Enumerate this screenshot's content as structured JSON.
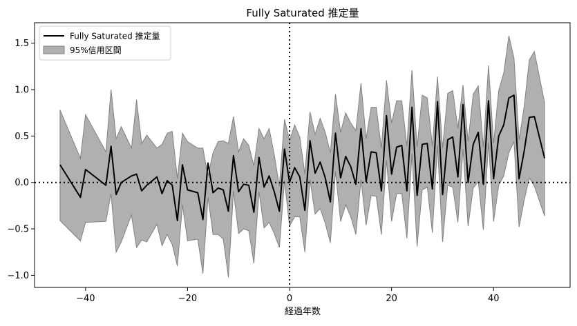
{
  "chart_data": {
    "type": "line",
    "title": "Fully Saturated 推定量",
    "xlabel": "経過年数",
    "ylabel": "",
    "xlim": [
      -50,
      55
    ],
    "ylim": [
      -1.13,
      1.72
    ],
    "xticks": [
      -40,
      -20,
      0,
      20,
      40
    ],
    "xtick_labels": [
      "−40",
      "−20",
      "0",
      "20",
      "40"
    ],
    "yticks": [
      -1.0,
      -0.5,
      0.0,
      0.5,
      1.0,
      1.5
    ],
    "ytick_labels": [
      "−1.0",
      "−0.5",
      "0.0",
      "0.5",
      "1.0",
      "1.5"
    ],
    "reference_lines": [
      {
        "orientation": "horizontal",
        "value": 0,
        "style": "dotted"
      },
      {
        "orientation": "vertical",
        "value": 0,
        "style": "dotted"
      }
    ],
    "legend": {
      "placement": "top-left"
    },
    "series": [
      {
        "name": "Fully Saturated 推定量",
        "kind": "line",
        "color": "#000000",
        "points": [
          [
            -45,
            0.19
          ],
          [
            -41,
            -0.16
          ],
          [
            -40,
            0.14
          ],
          [
            -36,
            -0.03
          ],
          [
            -35,
            0.39
          ],
          [
            -34,
            -0.13
          ],
          [
            -33,
            0.0
          ],
          [
            -31,
            0.07
          ],
          [
            -30,
            0.09
          ],
          [
            -29,
            -0.09
          ],
          [
            -28,
            -0.03
          ],
          [
            -26,
            0.06
          ],
          [
            -25,
            -0.12
          ],
          [
            -24,
            0.02
          ],
          [
            -23,
            -0.03
          ],
          [
            -22,
            -0.41
          ],
          [
            -21,
            0.19
          ],
          [
            -20,
            -0.08
          ],
          [
            -18,
            -0.11
          ],
          [
            -17,
            -0.4
          ],
          [
            -16,
            0.21
          ],
          [
            -15,
            -0.11
          ],
          [
            -14,
            -0.06
          ],
          [
            -13,
            -0.08
          ],
          [
            -12,
            -0.31
          ],
          [
            -11,
            0.29
          ],
          [
            -10,
            -0.1
          ],
          [
            -9,
            -0.02
          ],
          [
            -8,
            -0.03
          ],
          [
            -7,
            -0.32
          ],
          [
            -6,
            0.27
          ],
          [
            -5,
            -0.05
          ],
          [
            -4,
            0.07
          ],
          [
            -3,
            -0.1
          ],
          [
            -2,
            -0.31
          ],
          [
            -1,
            0.36
          ],
          [
            0,
            0.0
          ],
          [
            1,
            0.16
          ],
          [
            2,
            0.06
          ],
          [
            3,
            -0.3
          ],
          [
            4,
            0.45
          ],
          [
            5,
            0.1
          ],
          [
            6,
            0.22
          ],
          [
            7,
            0.05
          ],
          [
            8,
            -0.21
          ],
          [
            9,
            0.53
          ],
          [
            10,
            0.05
          ],
          [
            11,
            0.28
          ],
          [
            12,
            0.17
          ],
          [
            13,
            -0.02
          ],
          [
            14,
            0.58
          ],
          [
            15,
            0.01
          ],
          [
            16,
            0.33
          ],
          [
            17,
            0.32
          ],
          [
            18,
            -0.09
          ],
          [
            19,
            0.72
          ],
          [
            20,
            0.09
          ],
          [
            21,
            0.38
          ],
          [
            22,
            0.4
          ],
          [
            23,
            -0.09
          ],
          [
            24,
            0.81
          ],
          [
            25,
            -0.14
          ],
          [
            26,
            0.41
          ],
          [
            27,
            0.42
          ],
          [
            28,
            -0.07
          ],
          [
            29,
            0.87
          ],
          [
            30,
            -0.13
          ],
          [
            31,
            0.46
          ],
          [
            32,
            0.49
          ],
          [
            33,
            0.06
          ],
          [
            34,
            0.84
          ],
          [
            35,
            0.0
          ],
          [
            36,
            0.41
          ],
          [
            37,
            0.54
          ],
          [
            38,
            -0.02
          ],
          [
            39,
            0.88
          ],
          [
            40,
            0.04
          ],
          [
            41,
            0.5
          ],
          [
            42,
            0.62
          ],
          [
            43,
            0.91
          ],
          [
            44,
            0.94
          ],
          [
            45,
            0.04
          ],
          [
            46,
            0.34
          ],
          [
            47,
            0.7
          ],
          [
            48,
            0.71
          ],
          [
            50,
            0.26
          ]
        ]
      },
      {
        "name": "95%信用区間",
        "kind": "band",
        "color": "#b0b0b0",
        "edge_color": "#808080",
        "upper": [
          [
            -45,
            0.78
          ],
          [
            -41,
            0.26
          ],
          [
            -40,
            0.73
          ],
          [
            -36,
            0.33
          ],
          [
            -35,
            1.0
          ],
          [
            -34,
            0.47
          ],
          [
            -33,
            0.6
          ],
          [
            -31,
            0.37
          ],
          [
            -30,
            0.89
          ],
          [
            -29,
            0.42
          ],
          [
            -28,
            0.51
          ],
          [
            -26,
            0.37
          ],
          [
            -25,
            0.41
          ],
          [
            -24,
            0.53
          ],
          [
            -23,
            0.55
          ],
          [
            -22,
            0.04
          ],
          [
            -21,
            0.53
          ],
          [
            -20,
            0.44
          ],
          [
            -18,
            0.37
          ],
          [
            -17,
            0.37
          ],
          [
            -16,
            0.07
          ],
          [
            -15,
            0.32
          ],
          [
            -14,
            0.44
          ],
          [
            -13,
            0.45
          ],
          [
            -12,
            0.42
          ],
          [
            -11,
            0.71
          ],
          [
            -10,
            0.33
          ],
          [
            -9,
            0.47
          ],
          [
            -8,
            0.4
          ],
          [
            -7,
            0.18
          ],
          [
            -6,
            0.58
          ],
          [
            -5,
            0.47
          ],
          [
            -4,
            0.58
          ],
          [
            -3,
            0.3
          ],
          [
            -2,
            -0.04
          ],
          [
            -1,
            0.68
          ],
          [
            0,
            0.45
          ],
          [
            1,
            0.62
          ],
          [
            2,
            0.49
          ],
          [
            3,
            0.09
          ],
          [
            4,
            0.76
          ],
          [
            5,
            0.52
          ],
          [
            6,
            0.69
          ],
          [
            7,
            0.54
          ],
          [
            8,
            0.32
          ],
          [
            9,
            0.95
          ],
          [
            10,
            0.54
          ],
          [
            11,
            0.75
          ],
          [
            12,
            0.64
          ],
          [
            13,
            0.56
          ],
          [
            14,
            1.07
          ],
          [
            15,
            0.47
          ],
          [
            16,
            0.81
          ],
          [
            17,
            0.81
          ],
          [
            18,
            0.37
          ],
          [
            19,
            1.1
          ],
          [
            20,
            0.64
          ],
          [
            21,
            0.88
          ],
          [
            22,
            0.88
          ],
          [
            23,
            0.39
          ],
          [
            24,
            1.21
          ],
          [
            25,
            0.38
          ],
          [
            26,
            0.94
          ],
          [
            27,
            0.91
          ],
          [
            28,
            0.39
          ],
          [
            29,
            1.14
          ],
          [
            30,
            0.37
          ],
          [
            31,
            0.96
          ],
          [
            32,
            0.99
          ],
          [
            33,
            0.58
          ],
          [
            34,
            1.05
          ],
          [
            35,
            0.44
          ],
          [
            36,
            0.95
          ],
          [
            37,
            1.04
          ],
          [
            38,
            0.38
          ],
          [
            39,
            1.26
          ],
          [
            40,
            0.42
          ],
          [
            41,
            0.99
          ],
          [
            42,
            1.18
          ],
          [
            43,
            1.58
          ],
          [
            44,
            1.34
          ],
          [
            45,
            0.46
          ],
          [
            46,
            0.82
          ],
          [
            47,
            1.32
          ],
          [
            48,
            1.41
          ],
          [
            50,
            0.86
          ]
        ],
        "lower": [
          [
            -45,
            -0.41
          ],
          [
            -41,
            -0.63
          ],
          [
            -40,
            -0.43
          ],
          [
            -36,
            -0.42
          ],
          [
            -35,
            -0.12
          ],
          [
            -34,
            -0.75
          ],
          [
            -33,
            -0.64
          ],
          [
            -31,
            -0.35
          ],
          [
            -30,
            -0.7
          ],
          [
            -29,
            -0.62
          ],
          [
            -28,
            -0.64
          ],
          [
            -26,
            -0.45
          ],
          [
            -25,
            -0.68
          ],
          [
            -24,
            -0.56
          ],
          [
            -23,
            -0.67
          ],
          [
            -22,
            -0.9
          ],
          [
            -21,
            -0.24
          ],
          [
            -20,
            -0.63
          ],
          [
            -18,
            -0.61
          ],
          [
            -17,
            -0.98
          ],
          [
            -16,
            -0.16
          ],
          [
            -15,
            -0.56
          ],
          [
            -14,
            -0.56
          ],
          [
            -13,
            -0.61
          ],
          [
            -12,
            -1.02
          ],
          [
            -11,
            -0.09
          ],
          [
            -10,
            -0.55
          ],
          [
            -9,
            -0.5
          ],
          [
            -8,
            -0.52
          ],
          [
            -7,
            -0.87
          ],
          [
            -6,
            -0.1
          ],
          [
            -5,
            -0.49
          ],
          [
            -4,
            -0.43
          ],
          [
            -3,
            -0.55
          ],
          [
            -2,
            -0.7
          ],
          [
            -1,
            0.02
          ],
          [
            0,
            -0.47
          ],
          [
            1,
            -0.37
          ],
          [
            2,
            -0.37
          ],
          [
            3,
            -0.75
          ],
          [
            4,
            0.03
          ],
          [
            5,
            -0.34
          ],
          [
            6,
            -0.28
          ],
          [
            7,
            -0.44
          ],
          [
            8,
            -0.65
          ],
          [
            9,
            0.12
          ],
          [
            10,
            -0.42
          ],
          [
            11,
            -0.24
          ],
          [
            12,
            -0.37
          ],
          [
            13,
            -0.56
          ],
          [
            14,
            0.03
          ],
          [
            15,
            -0.46
          ],
          [
            16,
            -0.14
          ],
          [
            17,
            -0.15
          ],
          [
            18,
            -0.56
          ],
          [
            19,
            0.24
          ],
          [
            20,
            -0.42
          ],
          [
            21,
            -0.12
          ],
          [
            22,
            -0.12
          ],
          [
            23,
            -0.6
          ],
          [
            24,
            0.31
          ],
          [
            25,
            -0.69
          ],
          [
            26,
            -0.08
          ],
          [
            27,
            -0.05
          ],
          [
            28,
            -0.54
          ],
          [
            29,
            0.4
          ],
          [
            30,
            -0.64
          ],
          [
            31,
            -0.03
          ],
          [
            32,
            -0.05
          ],
          [
            33,
            -0.43
          ],
          [
            34,
            0.36
          ],
          [
            35,
            -0.47
          ],
          [
            36,
            -0.06
          ],
          [
            37,
            0.01
          ],
          [
            38,
            -0.51
          ],
          [
            39,
            0.43
          ],
          [
            40,
            -0.42
          ],
          [
            41,
            -0.03
          ],
          [
            42,
            0.07
          ],
          [
            43,
            0.32
          ],
          [
            44,
            0.44
          ],
          [
            45,
            -0.48
          ],
          [
            46,
            -0.19
          ],
          [
            47,
            0.05
          ],
          [
            48,
            -0.04
          ],
          [
            50,
            -0.36
          ]
        ]
      }
    ]
  }
}
